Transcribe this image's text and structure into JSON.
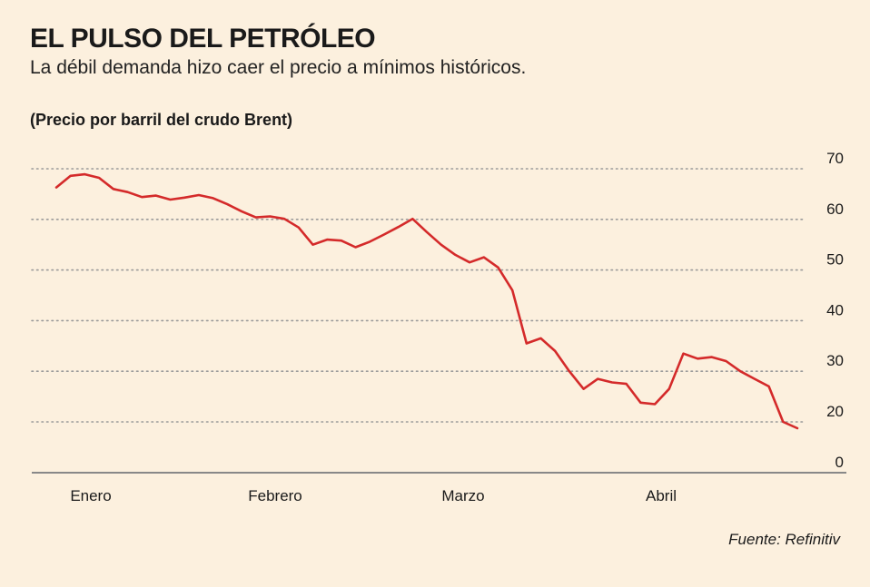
{
  "header": {
    "title": "EL PULSO DEL PETRÓLEO",
    "subtitle": "La débil demanda hizo caer el precio a mínimos históricos.",
    "unit_label": "(Precio por barril del crudo Brent)"
  },
  "source": "Fuente: Refinitiv",
  "colors": {
    "line": "#d42a2a",
    "grid": "#9a9a9a",
    "background": "#fcf0de",
    "axis": "#888888"
  },
  "chart_data": {
    "type": "line",
    "title": "EL PULSO DEL PETRÓLEO",
    "subtitle": "La débil demanda hizo caer el precio a mínimos históricos.",
    "ylabel": "(Precio por barril del crudo Brent)",
    "xlabel": "",
    "ylim": [
      0,
      70
    ],
    "yticks": [
      0,
      20,
      30,
      40,
      50,
      60,
      70
    ],
    "xticks": [
      "Enero",
      "Febrero",
      "Marzo",
      "Abril"
    ],
    "grid": true,
    "series": [
      {
        "values": [
          66.3,
          68.6,
          68.9,
          68.2,
          66.0,
          65.4,
          64.4,
          64.7,
          63.9,
          64.3,
          64.8,
          64.2,
          63.0,
          61.6,
          60.4,
          60.6,
          60.1,
          58.4,
          55.0,
          56.0,
          55.8,
          54.5,
          55.6,
          57.0,
          58.5,
          60.1,
          57.5,
          55.0,
          53.0,
          51.5,
          52.5,
          50.5,
          46.0,
          35.5,
          36.5,
          34.0,
          30.0,
          26.5,
          28.5,
          27.8,
          27.5,
          23.8,
          23.5,
          26.5,
          33.5,
          32.5,
          32.8,
          32.0,
          30.0,
          28.5,
          27.0,
          20.0,
          17.5
        ]
      }
    ]
  }
}
